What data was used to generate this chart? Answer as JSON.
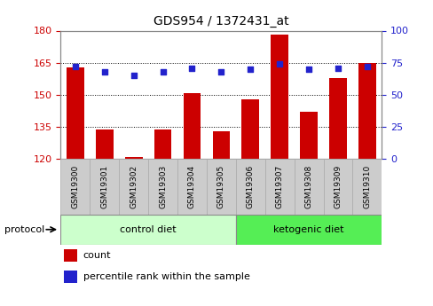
{
  "title": "GDS954 / 1372431_at",
  "samples": [
    "GSM19300",
    "GSM19301",
    "GSM19302",
    "GSM19303",
    "GSM19304",
    "GSM19305",
    "GSM19306",
    "GSM19307",
    "GSM19308",
    "GSM19309",
    "GSM19310"
  ],
  "counts": [
    163,
    134,
    121,
    134,
    151,
    133,
    148,
    178,
    142,
    158,
    165
  ],
  "percentile_ranks": [
    72,
    68,
    65,
    68,
    71,
    68,
    70,
    74,
    70,
    71,
    72
  ],
  "ylim_left": [
    120,
    180
  ],
  "ylim_right": [
    0,
    100
  ],
  "yticks_left": [
    120,
    135,
    150,
    165,
    180
  ],
  "yticks_right": [
    0,
    25,
    50,
    75,
    100
  ],
  "bar_color": "#cc0000",
  "dot_color": "#2222cc",
  "grid_color": "#000000",
  "background_color": "#ffffff",
  "tick_color_left": "#cc0000",
  "tick_color_right": "#2222cc",
  "n_control": 6,
  "n_ketogenic": 5,
  "control_diet_label": "control diet",
  "ketogenic_diet_label": "ketogenic diet",
  "protocol_label": "protocol",
  "legend_count": "count",
  "legend_percentile": "percentile rank within the sample",
  "bar_width": 0.6,
  "sample_bg_color": "#cccccc",
  "control_bg_color": "#ccffcc",
  "ketogenic_bg_color": "#55ee55"
}
